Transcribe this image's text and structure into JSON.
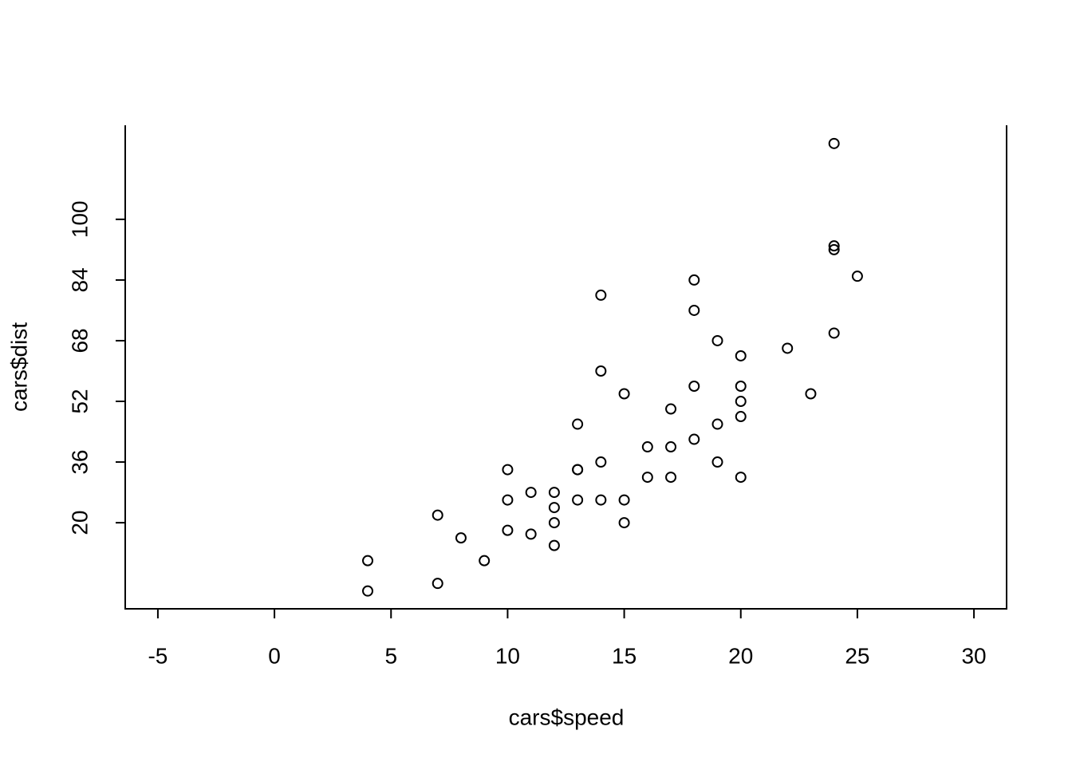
{
  "chart_data": {
    "type": "scatter",
    "x_label": "cars$speed",
    "y_label": "cars$dist",
    "x": [
      4,
      4,
      7,
      7,
      8,
      9,
      10,
      10,
      10,
      11,
      11,
      12,
      12,
      12,
      12,
      13,
      13,
      13,
      13,
      14,
      14,
      14,
      14,
      15,
      15,
      15,
      16,
      16,
      17,
      17,
      17,
      18,
      18,
      18,
      18,
      19,
      19,
      19,
      20,
      20,
      20,
      20,
      20,
      22,
      23,
      24,
      24,
      24,
      24,
      25
    ],
    "values": [
      2,
      10,
      4,
      22,
      16,
      10,
      18,
      26,
      34,
      17,
      28,
      14,
      20,
      24,
      28,
      26,
      34,
      34,
      46,
      26,
      36,
      60,
      80,
      20,
      26,
      54,
      32,
      40,
      32,
      40,
      50,
      42,
      56,
      76,
      84,
      36,
      46,
      68,
      32,
      48,
      52,
      56,
      64,
      66,
      54,
      70,
      92,
      93,
      120,
      85
    ],
    "color": "#000000",
    "xlim": [
      -6.4,
      31.4
    ],
    "ylim": [
      -2.7,
      124.8
    ],
    "xticks": [
      -5,
      0,
      5,
      10,
      15,
      20,
      25,
      30
    ],
    "yticks": [
      20,
      36,
      52,
      68,
      84,
      100
    ]
  }
}
